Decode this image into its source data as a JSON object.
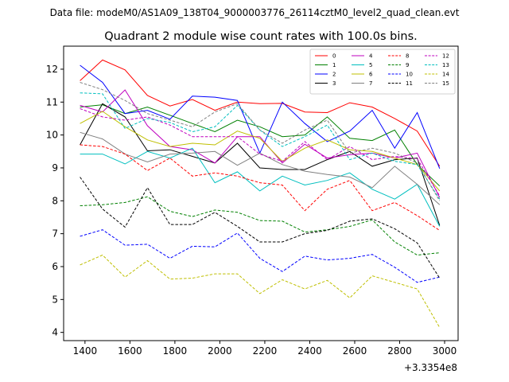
{
  "header": {
    "file_label": "Data file: modeM0/AS1A09_138T04_9000003776_26114cztM0_level2_quad_clean.evt"
  },
  "chart_data": {
    "type": "line",
    "title": "Quadrant 2 module wise count rates with 100.0s bins.",
    "xlabel": "",
    "ylabel": "",
    "x_offset_label": "+3.3354e8",
    "xlim": [
      1305,
      3060
    ],
    "ylim": [
      3.75,
      12.7
    ],
    "xticks": [
      1400,
      1600,
      1800,
      2000,
      2200,
      2400,
      2600,
      2800,
      3000
    ],
    "yticks": [
      4,
      5,
      6,
      7,
      8,
      9,
      10,
      11,
      12
    ],
    "grid": false,
    "legend_position": "top-right",
    "x": [
      1378,
      1478,
      1578,
      1678,
      1778,
      1878,
      1978,
      2078,
      2178,
      2278,
      2378,
      2478,
      2578,
      2678,
      2778,
      2878,
      2978
    ],
    "series": [
      {
        "name": "0",
        "color": "#ff0000",
        "dash": "solid",
        "values": [
          11.65,
          12.28,
          11.98,
          11.2,
          10.88,
          11.08,
          10.75,
          11.0,
          10.95,
          10.96,
          10.7,
          10.68,
          10.98,
          10.85,
          10.5,
          10.12,
          9.05
        ]
      },
      {
        "name": "1",
        "color": "#008000",
        "dash": "solid",
        "values": [
          10.85,
          10.92,
          10.65,
          10.85,
          10.6,
          10.35,
          10.1,
          10.45,
          10.25,
          9.95,
          10.0,
          10.55,
          9.9,
          9.83,
          10.15,
          9.1,
          8.45
        ]
      },
      {
        "name": "2",
        "color": "#0000ff",
        "dash": "solid",
        "values": [
          12.12,
          11.6,
          10.65,
          10.75,
          10.48,
          11.18,
          11.15,
          11.05,
          9.45,
          11.0,
          10.35,
          9.8,
          10.12,
          10.75,
          9.6,
          10.68,
          8.98
        ]
      },
      {
        "name": "3",
        "color": "#000000",
        "dash": "solid",
        "values": [
          9.7,
          10.95,
          10.55,
          9.52,
          9.55,
          9.35,
          9.15,
          9.75,
          9.0,
          8.95,
          8.95,
          9.25,
          9.5,
          9.05,
          9.25,
          9.3,
          7.25
        ]
      },
      {
        "name": "4",
        "color": "#bf00bf",
        "dash": "solid",
        "values": [
          10.9,
          10.7,
          11.37,
          10.28,
          9.65,
          9.55,
          9.15,
          9.95,
          9.95,
          9.15,
          9.72,
          9.3,
          9.4,
          9.45,
          9.3,
          9.45,
          8.1
        ]
      },
      {
        "name": "5",
        "color": "#00bfbf",
        "dash": "solid",
        "values": [
          9.42,
          9.42,
          9.12,
          9.5,
          9.3,
          9.6,
          8.55,
          8.88,
          8.3,
          8.75,
          8.48,
          8.62,
          8.85,
          8.35,
          8.05,
          8.5,
          7.22
        ]
      },
      {
        "name": "6",
        "color": "#bfbf00",
        "dash": "solid",
        "values": [
          10.35,
          10.72,
          10.25,
          9.85,
          9.65,
          9.75,
          9.7,
          10.12,
          9.9,
          9.2,
          9.6,
          9.85,
          9.55,
          9.5,
          9.3,
          9.1,
          8.3
        ]
      },
      {
        "name": "7",
        "color": "#808080",
        "dash": "solid",
        "values": [
          10.08,
          9.88,
          9.42,
          9.18,
          9.42,
          9.45,
          9.5,
          9.08,
          9.45,
          9.1,
          8.9,
          8.8,
          8.72,
          8.4,
          9.05,
          8.5,
          7.88
        ]
      },
      {
        "name": "8",
        "color": "#ff0000",
        "dash": "dashed",
        "values": [
          9.7,
          9.65,
          9.42,
          8.92,
          9.3,
          8.75,
          8.85,
          8.75,
          8.55,
          8.48,
          7.7,
          8.35,
          8.62,
          7.7,
          7.95,
          7.55,
          7.1
        ]
      },
      {
        "name": "9",
        "color": "#008000",
        "dash": "dashed",
        "values": [
          7.85,
          7.88,
          7.95,
          8.12,
          7.68,
          7.52,
          7.72,
          7.65,
          7.4,
          7.38,
          7.05,
          7.12,
          7.22,
          7.42,
          6.75,
          6.35,
          6.42
        ]
      },
      {
        "name": "10",
        "color": "#0000ff",
        "dash": "dashed",
        "values": [
          6.92,
          7.12,
          6.65,
          6.68,
          6.25,
          6.62,
          6.6,
          7.02,
          6.25,
          5.85,
          6.32,
          6.2,
          6.25,
          6.37,
          5.98,
          5.52,
          5.68
        ]
      },
      {
        "name": "11",
        "color": "#000000",
        "dash": "dashed",
        "values": [
          8.72,
          7.75,
          7.2,
          8.4,
          7.28,
          7.28,
          7.65,
          7.22,
          6.75,
          6.75,
          7.0,
          7.1,
          7.38,
          7.45,
          7.15,
          6.72,
          5.65
        ]
      },
      {
        "name": "12",
        "color": "#bf00bf",
        "dash": "dashed",
        "values": [
          10.8,
          10.55,
          10.45,
          10.55,
          10.3,
          9.95,
          9.95,
          9.95,
          9.42,
          9.2,
          9.8,
          9.25,
          9.65,
          9.25,
          9.35,
          9.28,
          8.15
        ]
      },
      {
        "name": "13",
        "color": "#00bfbf",
        "dash": "dashed",
        "values": [
          11.28,
          11.25,
          10.2,
          10.5,
          10.38,
          10.1,
          10.25,
          10.9,
          10.15,
          9.65,
          9.95,
          10.3,
          9.25,
          9.45,
          9.2,
          9.1,
          8.05
        ]
      },
      {
        "name": "14",
        "color": "#bfbf00",
        "dash": "dashed",
        "values": [
          6.05,
          6.35,
          5.68,
          6.18,
          5.62,
          5.65,
          5.78,
          5.78,
          5.18,
          5.6,
          5.32,
          5.58,
          5.05,
          5.72,
          5.52,
          5.32,
          4.15
        ]
      },
      {
        "name": "15",
        "color": "#808080",
        "dash": "dashed",
        "values": [
          11.6,
          11.38,
          11.05,
          10.65,
          10.45,
          10.25,
          10.7,
          10.95,
          10.15,
          9.75,
          10.15,
          10.45,
          9.45,
          9.6,
          9.45,
          9.15,
          8.0
        ]
      }
    ]
  }
}
